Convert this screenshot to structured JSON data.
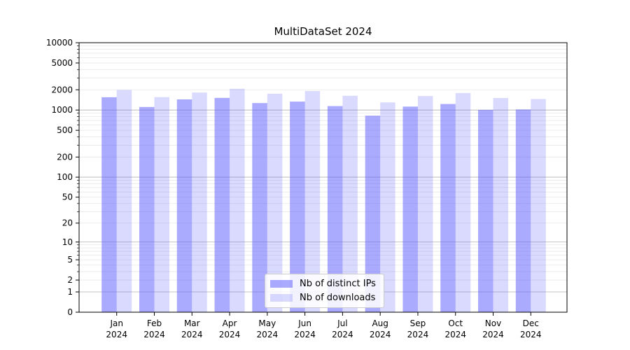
{
  "chart_data": {
    "type": "bar",
    "title": "MultiDataSet 2024",
    "categories": [
      "Jan",
      "Feb",
      "Mar",
      "Apr",
      "May",
      "Jun",
      "Jul",
      "Aug",
      "Sep",
      "Oct",
      "Nov",
      "Dec"
    ],
    "year_label": "2024",
    "series": [
      {
        "name": "Nb of distinct IPs",
        "color": "#5555ff",
        "alpha": 0.5,
        "values": [
          1550,
          1110,
          1440,
          1515,
          1270,
          1335,
          1145,
          825,
          1125,
          1230,
          1005,
          1020
        ]
      },
      {
        "name": "Nb of downloads",
        "color": "#5555ff",
        "alpha": 0.22,
        "values": [
          1985,
          1555,
          1820,
          2070,
          1750,
          1920,
          1630,
          1300,
          1615,
          1790,
          1510,
          1460
        ]
      }
    ],
    "yscale": "log1p",
    "ylim": [
      0,
      10000
    ],
    "yticks": [
      0,
      1,
      2,
      5,
      10,
      20,
      50,
      100,
      200,
      500,
      1000,
      2000,
      5000,
      10000
    ],
    "grid": {
      "on": true,
      "major_at": [
        1,
        10,
        100,
        1000,
        10000
      ],
      "major_color": "#b0b0b0",
      "minor_color": "#e7e7e7"
    },
    "legend": {
      "position": "lower center"
    },
    "frame_color": "#000000",
    "xlabel": "",
    "ylabel": ""
  }
}
